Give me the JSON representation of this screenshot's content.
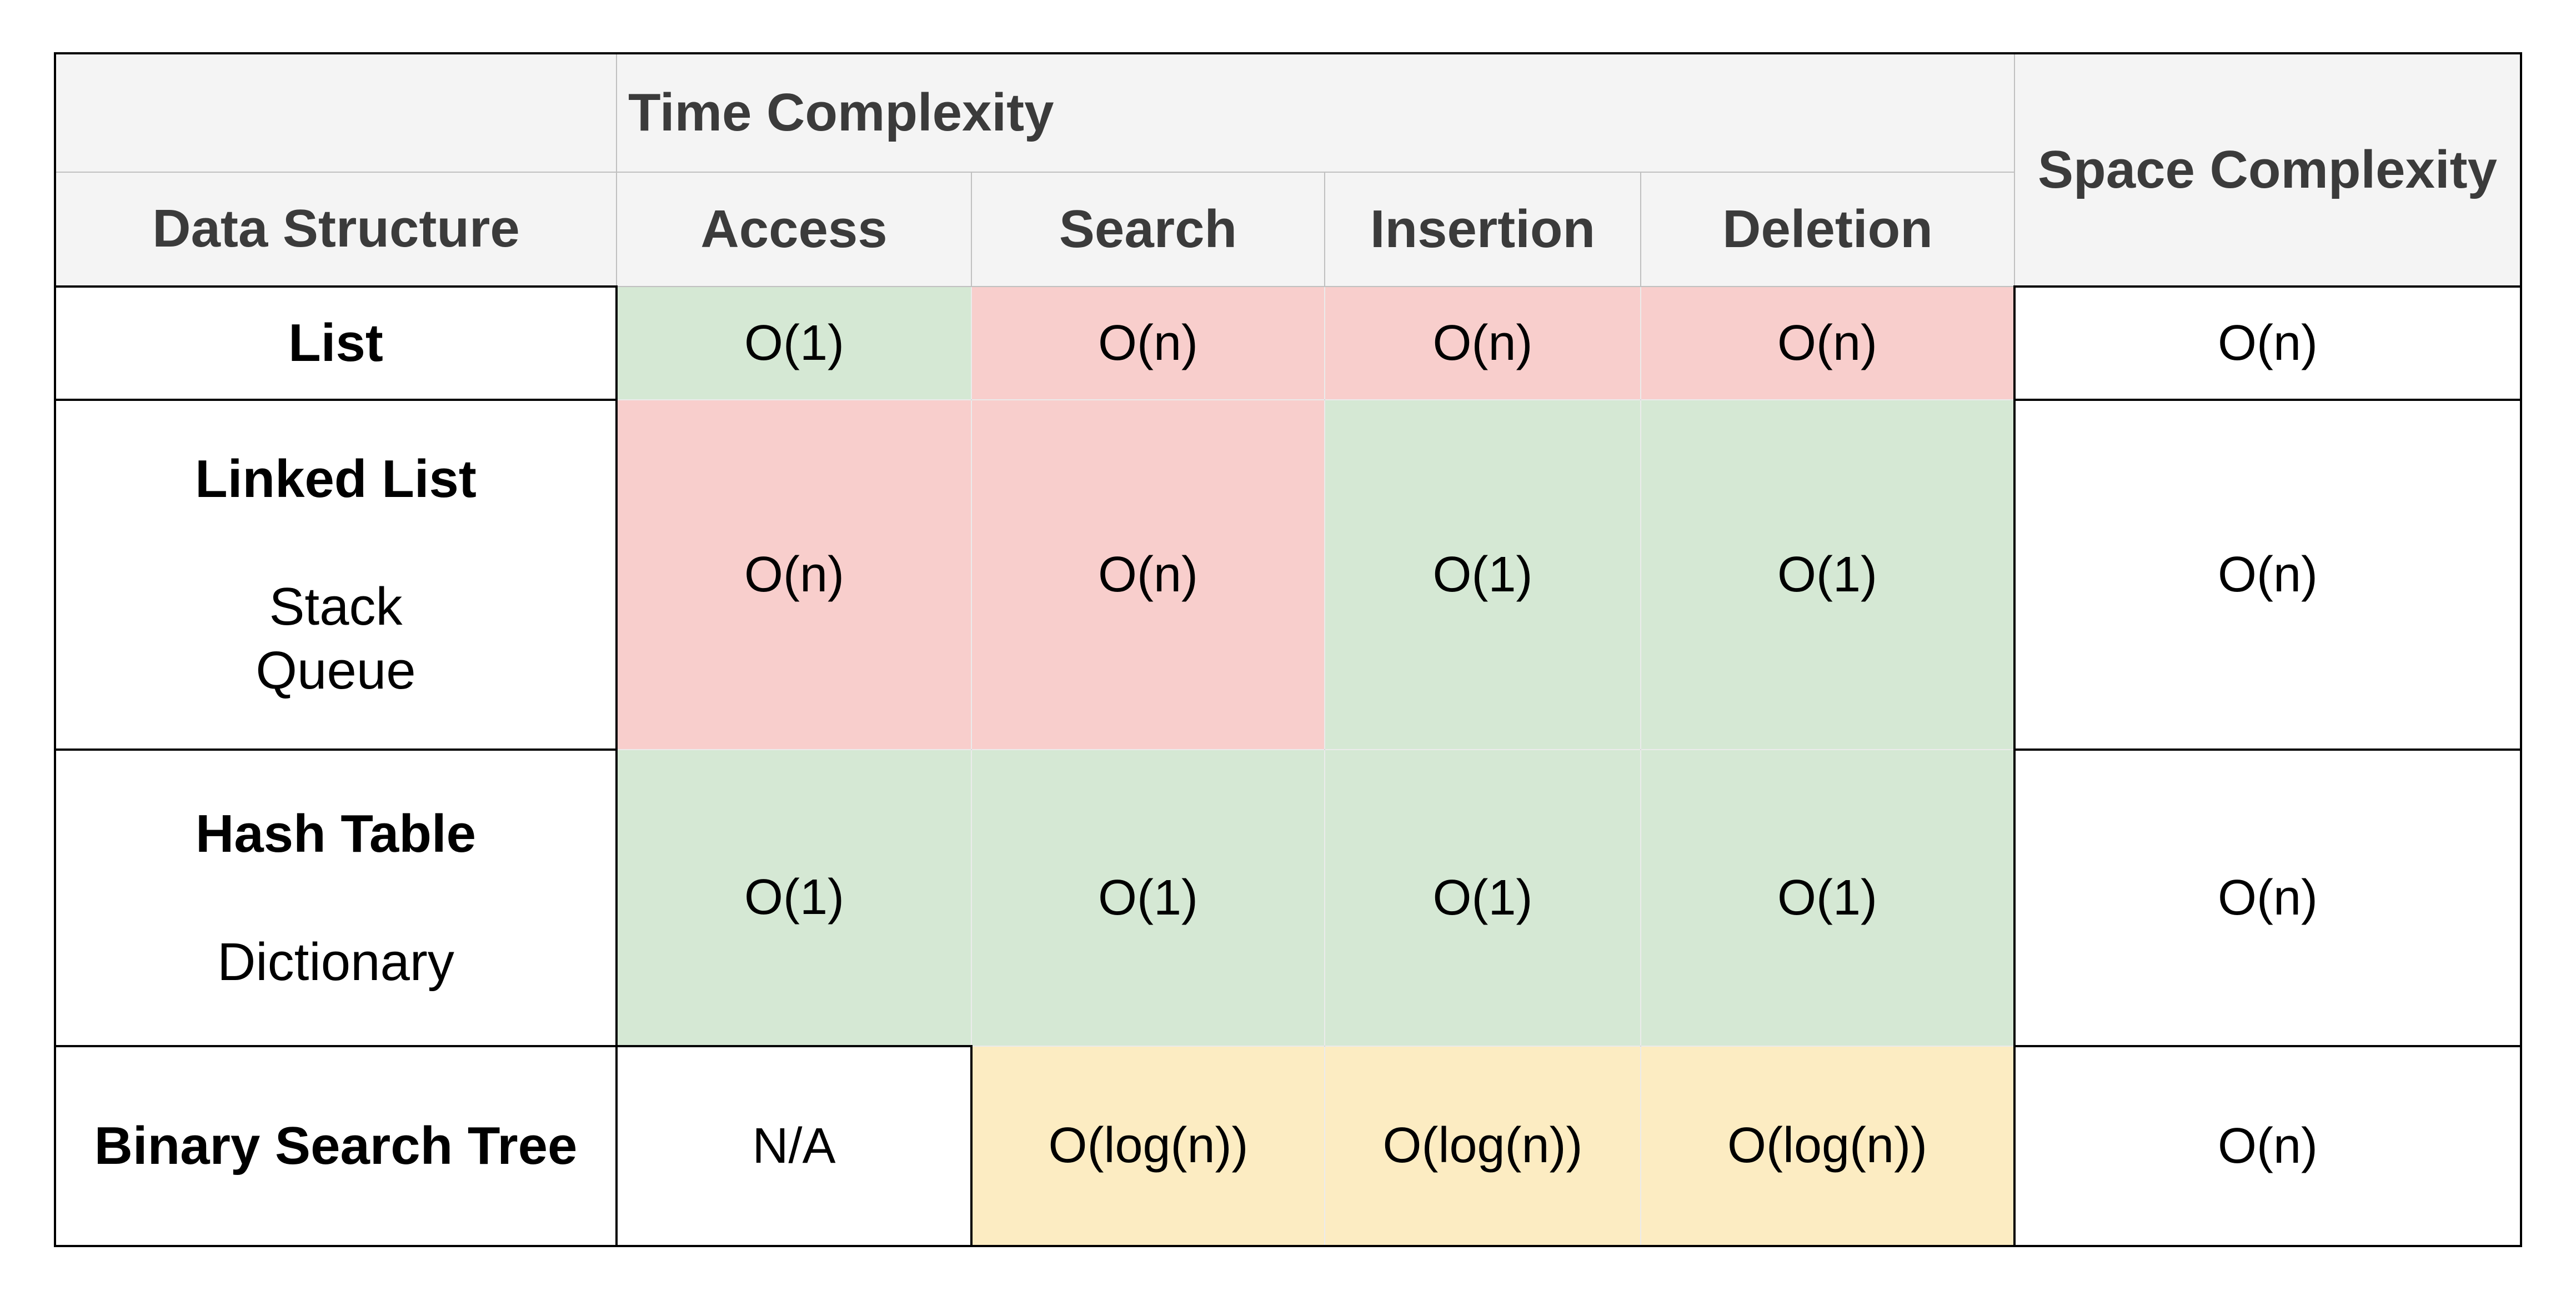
{
  "colors": {
    "header_bg": "#f4f4f4",
    "header_text": "#3b3b3b",
    "grid_light": "#c0c0c0",
    "border_dark": "#000000",
    "green": "#d5e8d4",
    "red": "#f8cecc",
    "yellow": "#fcecc2"
  },
  "table": {
    "header": {
      "corner_label": "",
      "time_complexity_label": "Time Complexity",
      "space_complexity_label": "Space Complexity",
      "data_structure_label": "Data Structure",
      "operations": [
        "Access",
        "Search",
        "Insertion",
        "Deletion"
      ]
    },
    "rows": [
      {
        "label_lines": [
          "List"
        ],
        "cells": [
          {
            "text": "O(1)",
            "color": "green"
          },
          {
            "text": "O(n)",
            "color": "red"
          },
          {
            "text": "O(n)",
            "color": "red"
          },
          {
            "text": "O(n)",
            "color": "red"
          }
        ],
        "space_complexity": {
          "text": "O(n)",
          "color": "white"
        }
      },
      {
        "label_lines": [
          "Linked List",
          "",
          "Stack",
          "Queue"
        ],
        "cells": [
          {
            "text": "O(n)",
            "color": "red"
          },
          {
            "text": "O(n)",
            "color": "red"
          },
          {
            "text": "O(1)",
            "color": "green"
          },
          {
            "text": "O(1)",
            "color": "green"
          }
        ],
        "space_complexity": {
          "text": "O(n)",
          "color": "white"
        }
      },
      {
        "label_lines": [
          "Hash Table",
          "",
          "Dictionary"
        ],
        "cells": [
          {
            "text": "O(1)",
            "color": "green"
          },
          {
            "text": "O(1)",
            "color": "green"
          },
          {
            "text": "O(1)",
            "color": "green"
          },
          {
            "text": "O(1)",
            "color": "green"
          }
        ],
        "space_complexity": {
          "text": "O(n)",
          "color": "white"
        }
      },
      {
        "label_lines": [
          "Binary Search Tree"
        ],
        "cells": [
          {
            "text": "N/A",
            "color": "white"
          },
          {
            "text": "O(log(n))",
            "color": "yellow"
          },
          {
            "text": "O(log(n))",
            "color": "yellow"
          },
          {
            "text": "O(log(n))",
            "color": "yellow"
          }
        ],
        "space_complexity": {
          "text": "O(n)",
          "color": "white"
        }
      }
    ]
  },
  "chart_data": {
    "type": "table",
    "title": "",
    "column_groups": [
      {
        "label": "Time Complexity",
        "columns": [
          "Access",
          "Search",
          "Insertion",
          "Deletion"
        ]
      }
    ],
    "columns": [
      "Data Structure",
      "Access",
      "Search",
      "Insertion",
      "Deletion",
      "Space Complexity"
    ],
    "rows": [
      [
        "List",
        "O(1)",
        "O(n)",
        "O(n)",
        "O(n)",
        "O(n)"
      ],
      [
        "Linked List / Stack / Queue",
        "O(n)",
        "O(n)",
        "O(1)",
        "O(1)",
        "O(n)"
      ],
      [
        "Hash Table / Dictionary",
        "O(1)",
        "O(1)",
        "O(1)",
        "O(1)",
        "O(n)"
      ],
      [
        "Binary Search Tree",
        "N/A",
        "O(log(n))",
        "O(log(n))",
        "O(log(n))",
        "O(n)"
      ]
    ],
    "cell_fill_colors": [
      [
        "white",
        "green",
        "red",
        "red",
        "red",
        "white"
      ],
      [
        "white",
        "red",
        "red",
        "green",
        "green",
        "white"
      ],
      [
        "white",
        "green",
        "green",
        "green",
        "green",
        "white"
      ],
      [
        "white",
        "white",
        "yellow",
        "yellow",
        "yellow",
        "white"
      ]
    ],
    "layout_hints": {
      "grid": "black borders around white cells, light gray grid in header",
      "legend_position": "none"
    }
  }
}
